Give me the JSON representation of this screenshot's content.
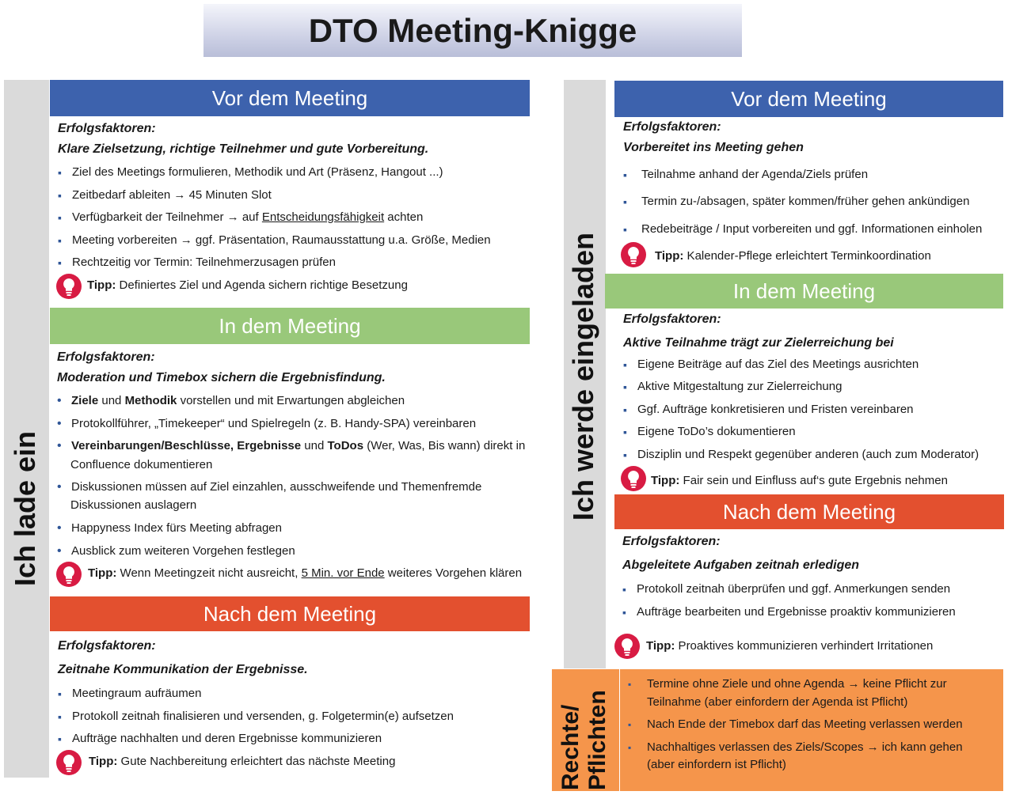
{
  "title": "DTO Meeting-Knigge",
  "left": {
    "side_label": "Ich lade ein",
    "vor": {
      "heading": "Vor dem Meeting",
      "ef_label": "Erfolgsfaktoren:",
      "ef_text": "Klare Zielsetzung, richtige Teilnehmer und gute Vorbereitung.",
      "items": [
        "Ziel des Meetings formulieren, Methodik und Art (Präsenz, Hangout ...)",
        "Zeitbedarf ableiten → 45 Minuten Slot",
        "Verfügbarkeit der Teilnehmer → auf ",
        "Meeting vorbereiten → ggf. Präsentation, Raumausstattung  u.a. Größe, Medien",
        "Rechtzeitig vor Termin: Teilnehmerzusagen prüfen"
      ],
      "item3_underline": "Entscheidungsfähigkeit",
      "item3_tail": " achten",
      "tip_label": "Tipp:",
      "tip_text": " Definiertes Ziel und Agenda sichern richtige Besetzung"
    },
    "in": {
      "heading": "In dem Meeting",
      "ef_label": "Erfolgsfaktoren:",
      "ef_text": "Moderation und Timebox sichern die Ergebnisfindung.",
      "i1_b1": "Ziele",
      "i1_m": " und ",
      "i1_b2": "Methodik",
      "i1_t": " vorstellen und mit Erwartungen abgleichen",
      "i2": "Protokollführer, „Timekeeper“ und Spielregeln (z. B. Handy-SPA) vereinbaren",
      "i3_b1": "Vereinbarungen/Beschlüsse, Ergebnisse",
      "i3_m": " und ",
      "i3_b2": "ToDos",
      "i3_t": " (Wer, Was, Bis wann) direkt in",
      "i3_l2": "Confluence dokumentieren",
      "i4_l1": "Diskussionen müssen auf Ziel einzahlen, ausschweifende und Themenfremde",
      "i4_l2": "Diskussionen auslagern",
      "i5": "Happyness Index fürs Meeting abfragen",
      "i6": "Ausblick zum weiteren Vorgehen festlegen",
      "tip_label": "Tipp:",
      "tip_a": " Wenn Meetingzeit nicht ausreicht, ",
      "tip_u": "5 Min. vor Ende",
      "tip_b": " weiteres Vorgehen klären"
    },
    "nach": {
      "heading": "Nach dem Meeting",
      "ef_label": "Erfolgsfaktoren:",
      "ef_text": "Zeitnahe Kommunikation der Ergebnisse.",
      "items": [
        "Meetingraum aufräumen",
        "Protokoll zeitnah finalisieren und versenden, g. Folgetermin(e) aufsetzen",
        "Aufträge nachhalten und deren Ergebnisse kommunizieren"
      ],
      "tip_label": "Tipp:",
      "tip_text": " Gute Nachbereitung erleichtert das nächste Meeting"
    }
  },
  "right": {
    "side_label": "Ich werde eingeladen",
    "vor": {
      "heading": "Vor dem Meeting",
      "ef_label": "Erfolgsfaktoren:",
      "ef_text": "Vorbereitet ins Meeting gehen",
      "items": [
        "Teilnahme anhand der Agenda/Ziels prüfen",
        "Termin zu-/absagen, später kommen/früher gehen ankündigen",
        "Redebeiträge / Input vorbereiten und  ggf. Informationen einholen"
      ],
      "tip_label": "Tipp:",
      "tip_text": " Kalender-Pflege erleichtert Terminkoordination"
    },
    "in": {
      "heading": "In dem Meeting",
      "ef_label": "Erfolgsfaktoren:",
      "ef_text": "Aktive Teilnahme trägt zur Zielerreichung bei",
      "items": [
        "Eigene Beiträge auf das Ziel des Meetings ausrichten",
        "Aktive Mitgestaltung zur Zielerreichung",
        "Ggf. Aufträge konkretisieren und Fristen vereinbaren",
        "Eigene ToDo’s dokumentieren",
        "Disziplin und Respekt gegenüber anderen (auch zum Moderator)"
      ],
      "tip_label": "Tipp:",
      "tip_text": " Fair sein und Einfluss auf‘s gute Ergebnis nehmen"
    },
    "nach": {
      "heading": "Nach dem Meeting",
      "ef_label": "Erfolgsfaktoren:",
      "ef_text": "Abgeleitete Aufgaben zeitnah erledigen",
      "items": [
        "Protokoll zeitnah überprüfen und ggf. Anmerkungen senden",
        "Aufträge bearbeiten und Ergebnisse proaktiv kommunizieren"
      ],
      "tip_label": "Tipp:",
      "tip_text": " Proaktives kommunizieren verhindert Irritationen"
    }
  },
  "rechte": {
    "label_l1": "Rechte/",
    "label_l2": "Pflichten",
    "i1_l1": "Termine ohne Ziele und ohne Agenda → keine Pflicht zur",
    "i1_l2": "Teilnahme (aber einfordern der Agenda ist Pflicht)",
    "i2": "Nach Ende der Timebox darf das Meeting verlassen werden",
    "i3_l1": "Nachhaltiges verlassen des Ziels/Scopes → ich kann gehen",
    "i3_l2": "(aber einfordern ist Pflicht)"
  },
  "colors": {
    "blue": "#3d62ad",
    "green": "#99c87a",
    "red": "#e3502f",
    "orange": "#f5954b",
    "tip_icon": "#d81b43"
  },
  "icons": {
    "tip": "lightbulb-icon",
    "bullet_square": "square-bullet",
    "bullet_dot": "dot-bullet",
    "arrow": "arrow-right"
  }
}
